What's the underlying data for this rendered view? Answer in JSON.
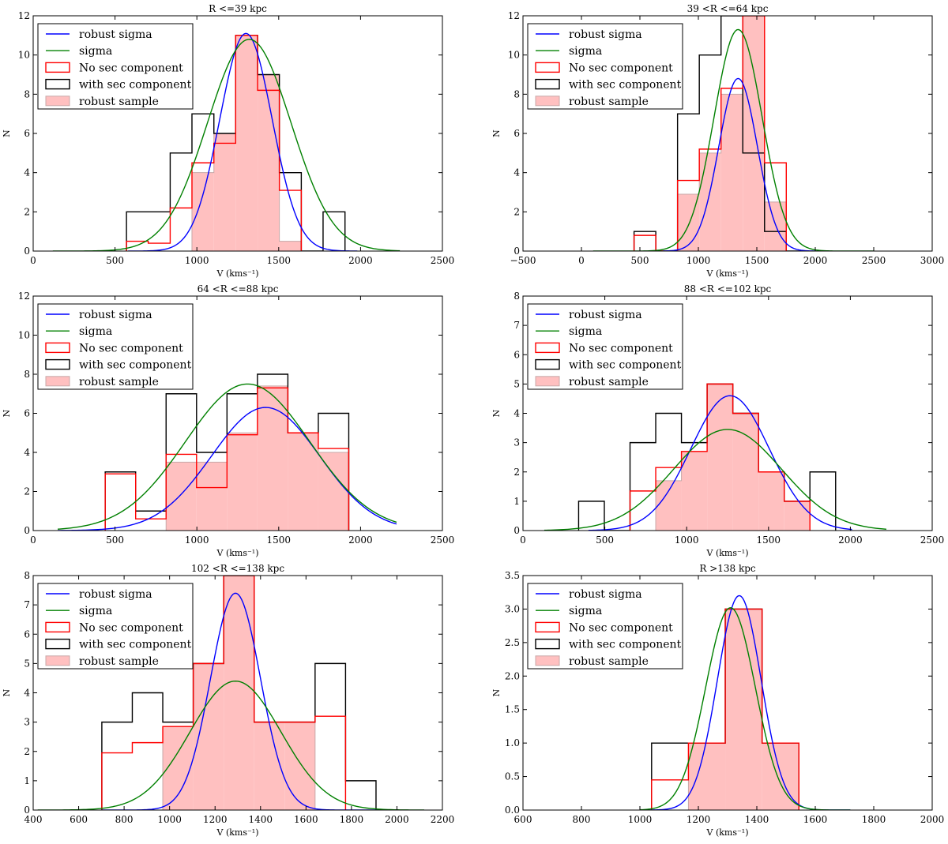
{
  "figure": {
    "layout": "3x2 grid of histogram panels"
  },
  "colors": {
    "robust_sigma": "#0000ff",
    "sigma": "#008000",
    "no_sec": "#ff0000",
    "with_sec": "#000000",
    "robust_fill": "#ffc0c0",
    "robust_edge": "#c8a8a8"
  },
  "chart_data": [
    {
      "type": "bar",
      "title": "R <=39 kpc",
      "xlabel": "V (kms⁻¹)",
      "ylabel": "N",
      "xlim": [
        0,
        2500
      ],
      "ylim": [
        0,
        12
      ],
      "xticks": [
        0,
        500,
        1000,
        1500,
        2000,
        2500
      ],
      "yticks": [
        0,
        2,
        4,
        6,
        8,
        10,
        12
      ],
      "legend": [
        "robust sigma",
        "sigma",
        "No sec component",
        "with sec component",
        "robust sample"
      ],
      "legend_position": "top-left",
      "with_sec": {
        "edges": [
          570,
          703,
          837,
          970,
          1104,
          1237,
          1371,
          1504,
          1638,
          1771,
          1905
        ],
        "values": [
          2,
          2,
          5,
          7,
          6,
          11,
          9,
          4,
          0,
          2
        ]
      },
      "no_sec": {
        "edges": [
          570,
          703,
          837,
          970,
          1104,
          1237,
          1371,
          1504,
          1638
        ],
        "values": [
          0.5,
          0.4,
          2.2,
          4.5,
          5.5,
          11,
          8.2,
          3.1
        ]
      },
      "robust": {
        "edges": [
          970,
          1104,
          1237,
          1371,
          1504,
          1638
        ],
        "values": [
          4,
          6,
          11,
          9,
          0.5
        ]
      },
      "fits": [
        {
          "name": "robust sigma",
          "amp": 11.1,
          "mu": 1300,
          "sigma": 160,
          "x0": 580,
          "x1": 1980
        },
        {
          "name": "sigma",
          "amp": 10.8,
          "mu": 1320,
          "sigma": 255,
          "x0": 120,
          "x1": 2240
        }
      ]
    },
    {
      "type": "bar",
      "title": "39 <R <=64 kpc",
      "xlabel": "V (kms⁻¹)",
      "ylabel": "N",
      "xlim": [
        -500,
        3000
      ],
      "ylim": [
        0,
        12
      ],
      "xticks": [
        -500,
        0,
        500,
        1000,
        1500,
        2000,
        2500,
        3000
      ],
      "yticks": [
        0,
        2,
        4,
        6,
        8,
        10,
        12
      ],
      "legend": [
        "robust sigma",
        "sigma",
        "No sec component",
        "with sec component",
        "robust sample"
      ],
      "legend_position": "top-left",
      "with_sec": {
        "edges": [
          450,
          636,
          822,
          1008,
          1194,
          1380,
          1566,
          1752,
          1938
        ],
        "values": [
          1,
          0,
          7,
          10,
          12,
          5,
          1,
          0
        ]
      },
      "no_sec": {
        "edges": [
          450,
          636,
          822,
          1008,
          1194,
          1380,
          1566,
          1752
        ],
        "values": [
          0.8,
          0,
          3.6,
          5.2,
          8.3,
          12,
          4.5
        ]
      },
      "robust": {
        "edges": [
          822,
          1008,
          1194,
          1380,
          1566,
          1752
        ],
        "values": [
          2.9,
          5,
          8,
          12,
          2.5
        ]
      },
      "fits": [
        {
          "name": "robust sigma",
          "amp": 8.8,
          "mu": 1340,
          "sigma": 165,
          "x0": 700,
          "x1": 2000
        },
        {
          "name": "sigma",
          "amp": 11.3,
          "mu": 1340,
          "sigma": 205,
          "x0": 100,
          "x1": 2500
        }
      ]
    },
    {
      "type": "bar",
      "title": "64 <R <=88 kpc",
      "xlabel": "V (kms⁻¹)",
      "ylabel": "N",
      "xlim": [
        0,
        2500
      ],
      "ylim": [
        0,
        12
      ],
      "xticks": [
        0,
        500,
        1000,
        1500,
        2000,
        2500
      ],
      "yticks": [
        0,
        2,
        4,
        6,
        8,
        10,
        12
      ],
      "legend": [
        "robust sigma",
        "sigma",
        "No sec component",
        "with sec component",
        "robust sample"
      ],
      "legend_position": "top-left",
      "with_sec": {
        "edges": [
          440,
          626,
          812,
          998,
          1184,
          1370,
          1556,
          1742,
          1928
        ],
        "values": [
          3,
          1,
          7,
          4,
          7,
          8,
          5,
          6
        ]
      },
      "no_sec": {
        "edges": [
          440,
          626,
          812,
          998,
          1184,
          1370,
          1556,
          1742,
          1928
        ],
        "values": [
          2.9,
          0.6,
          3.9,
          2.2,
          4.9,
          7.3,
          5,
          4.2
        ]
      },
      "robust": {
        "edges": [
          812,
          998,
          1184,
          1370,
          1556,
          1742,
          1928
        ],
        "values": [
          3.5,
          3.5,
          5,
          7.4,
          5,
          4
        ]
      },
      "fits": [
        {
          "name": "robust sigma",
          "amp": 6.3,
          "mu": 1420,
          "sigma": 330,
          "x0": 150,
          "x1": 2220
        },
        {
          "name": "sigma",
          "amp": 7.5,
          "mu": 1310,
          "sigma": 380,
          "x0": 150,
          "x1": 2220
        }
      ]
    },
    {
      "type": "bar",
      "title": "88 <R <=102 kpc",
      "xlabel": "V (kms⁻¹)",
      "ylabel": "N",
      "xlim": [
        0,
        2500
      ],
      "ylim": [
        0,
        8
      ],
      "xticks": [
        0,
        500,
        1000,
        1500,
        2000,
        2500
      ],
      "yticks": [
        0,
        1,
        2,
        3,
        4,
        5,
        6,
        7,
        8
      ],
      "legend": [
        "robust sigma",
        "sigma",
        "No sec component",
        "with sec component",
        "robust sample"
      ],
      "legend_position": "top-left",
      "with_sec": {
        "edges": [
          340,
          497,
          654,
          811,
          968,
          1125,
          1282,
          1439,
          1596,
          1753,
          1910
        ],
        "values": [
          1,
          0,
          3,
          4,
          3,
          5,
          4,
          2,
          1,
          2
        ]
      },
      "no_sec": {
        "edges": [
          654,
          811,
          968,
          1125,
          1282,
          1439,
          1596,
          1753
        ],
        "values": [
          1.35,
          2.15,
          2.7,
          5,
          4,
          2,
          1
        ]
      },
      "robust": {
        "edges": [
          811,
          968,
          1125,
          1282,
          1439,
          1596,
          1753
        ],
        "values": [
          1.7,
          2.7,
          5,
          4,
          2,
          1
        ]
      },
      "fits": [
        {
          "name": "robust sigma",
          "amp": 4.6,
          "mu": 1265,
          "sigma": 240,
          "x0": 400,
          "x1": 2010
        },
        {
          "name": "sigma",
          "amp": 3.45,
          "mu": 1250,
          "sigma": 330,
          "x0": 130,
          "x1": 2220
        }
      ]
    },
    {
      "type": "bar",
      "title": "102 <R <=138 kpc",
      "xlabel": "V (kms⁻¹)",
      "ylabel": "N",
      "xlim": [
        400,
        2200
      ],
      "ylim": [
        0,
        8
      ],
      "xticks": [
        400,
        600,
        800,
        1000,
        1200,
        1400,
        1600,
        1800,
        2000,
        2200
      ],
      "yticks": [
        0,
        1,
        2,
        3,
        4,
        5,
        6,
        7,
        8
      ],
      "legend": [
        "robust sigma",
        "sigma",
        "No sec component",
        "with sec component",
        "robust sample"
      ],
      "legend_position": "top-left",
      "with_sec": {
        "edges": [
          702,
          836,
          970,
          1104,
          1238,
          1372,
          1506,
          1640,
          1774,
          1908
        ],
        "values": [
          3,
          4,
          3,
          5,
          8,
          3,
          3,
          5,
          1
        ]
      },
      "no_sec": {
        "edges": [
          702,
          836,
          970,
          1104,
          1238,
          1372,
          1506,
          1640,
          1774
        ],
        "values": [
          1.95,
          2.3,
          2.85,
          5,
          8,
          3,
          3,
          3.2
        ]
      },
      "robust": {
        "edges": [
          970,
          1104,
          1238,
          1372,
          1506,
          1640
        ],
        "values": [
          2.85,
          5,
          8,
          3,
          3
        ]
      },
      "fits": [
        {
          "name": "robust sigma",
          "amp": 7.4,
          "mu": 1290,
          "sigma": 110,
          "x0": 700,
          "x1": 1920
        },
        {
          "name": "sigma",
          "amp": 4.4,
          "mu": 1290,
          "sigma": 200,
          "x0": 420,
          "x1": 2120
        }
      ]
    },
    {
      "type": "bar",
      "title": "R >138 kpc",
      "xlabel": "V (kms⁻¹)",
      "ylabel": "N",
      "xlim": [
        600,
        2000
      ],
      "ylim": [
        0,
        3.5
      ],
      "xticks": [
        600,
        800,
        1000,
        1200,
        1400,
        1600,
        1800,
        2000
      ],
      "yticks": [
        0,
        0.5,
        1.0,
        1.5,
        2.0,
        2.5,
        3.0,
        3.5
      ],
      "ytick_labels": [
        "0.0",
        "0.5",
        "1.0",
        "1.5",
        "2.0",
        "2.5",
        "3.0",
        "3.5"
      ],
      "legend": [
        "robust sigma",
        "sigma",
        "No sec component",
        "with sec component",
        "robust sample"
      ],
      "legend_position": "top-left",
      "with_sec": {
        "edges": [
          1040,
          1166,
          1292,
          1418,
          1544
        ],
        "values": [
          1,
          1,
          3,
          1
        ]
      },
      "no_sec": {
        "edges": [
          1040,
          1166,
          1292,
          1418,
          1544
        ],
        "values": [
          0.45,
          1,
          3,
          1
        ]
      },
      "robust": {
        "edges": [
          1166,
          1292,
          1418,
          1544
        ],
        "values": [
          1,
          3,
          1
        ]
      },
      "fits": [
        {
          "name": "robust sigma",
          "amp": 3.2,
          "mu": 1340,
          "sigma": 75,
          "x0": 1030,
          "x1": 1720
        },
        {
          "name": "sigma",
          "amp": 3.02,
          "mu": 1310,
          "sigma": 85,
          "x0": 1000,
          "x1": 1720
        }
      ]
    }
  ]
}
